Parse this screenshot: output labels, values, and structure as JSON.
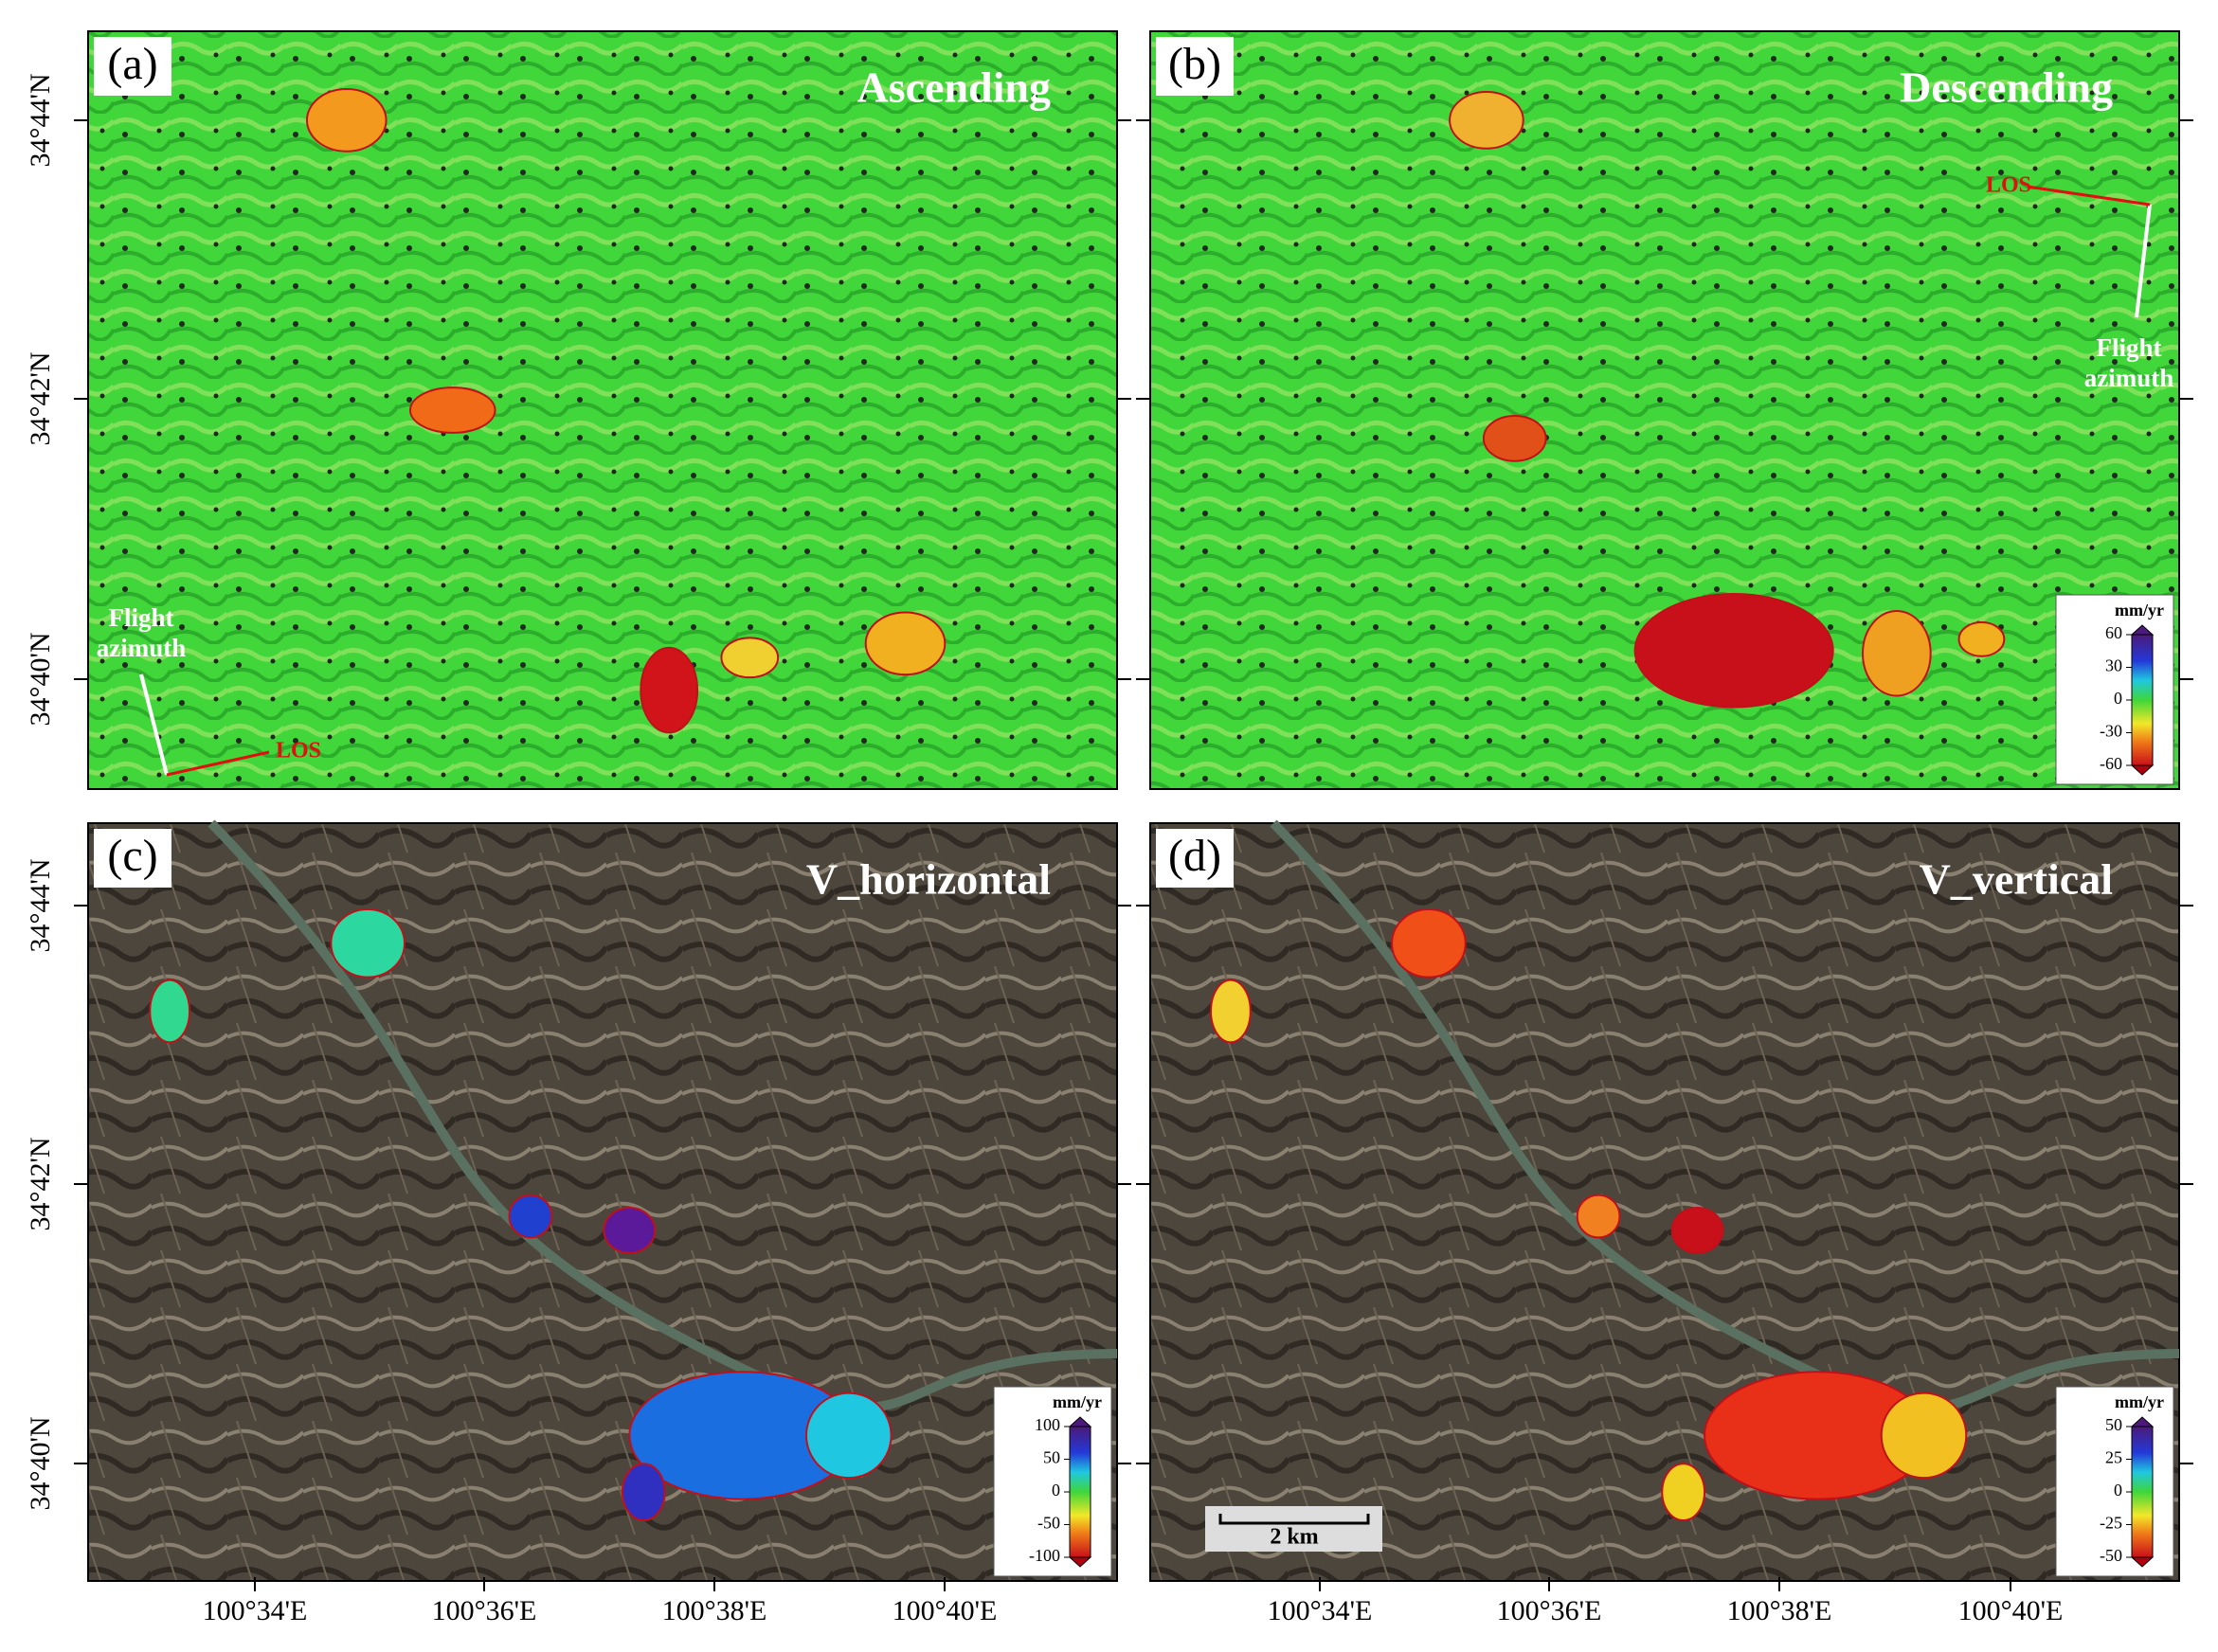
{
  "panels": [
    {
      "label": "(a)",
      "title": "Ascending",
      "flight_label": [
        "Flight",
        "azimuth"
      ],
      "los_label": "LOS"
    },
    {
      "label": "(b)",
      "title": "Descending",
      "flight_label": [
        "Flight",
        "azimuth"
      ],
      "los_label": "LOS",
      "colorbar": {
        "unit": "mm/yr",
        "lim": [
          -60,
          60
        ],
        "ticks": [
          60,
          30,
          0,
          -30,
          -60
        ]
      }
    },
    {
      "label": "(c)",
      "title": "V_horizontal",
      "colorbar": {
        "unit": "mm/yr",
        "lim": [
          -100,
          100
        ],
        "ticks": [
          100,
          50,
          0,
          -50,
          -100
        ]
      }
    },
    {
      "label": "(d)",
      "title": "V_vertical",
      "scale_bar": "2 km",
      "colorbar": {
        "unit": "mm/yr",
        "lim": [
          -50,
          50
        ],
        "ticks": [
          50,
          25,
          0,
          -25,
          -50
        ]
      }
    }
  ],
  "lat_labels": [
    "34°44'N",
    "34°42'N",
    "34°40'N"
  ],
  "lon_labels": [
    "100°34'E",
    "100°36'E",
    "100°38'E",
    "100°40'E"
  ]
}
